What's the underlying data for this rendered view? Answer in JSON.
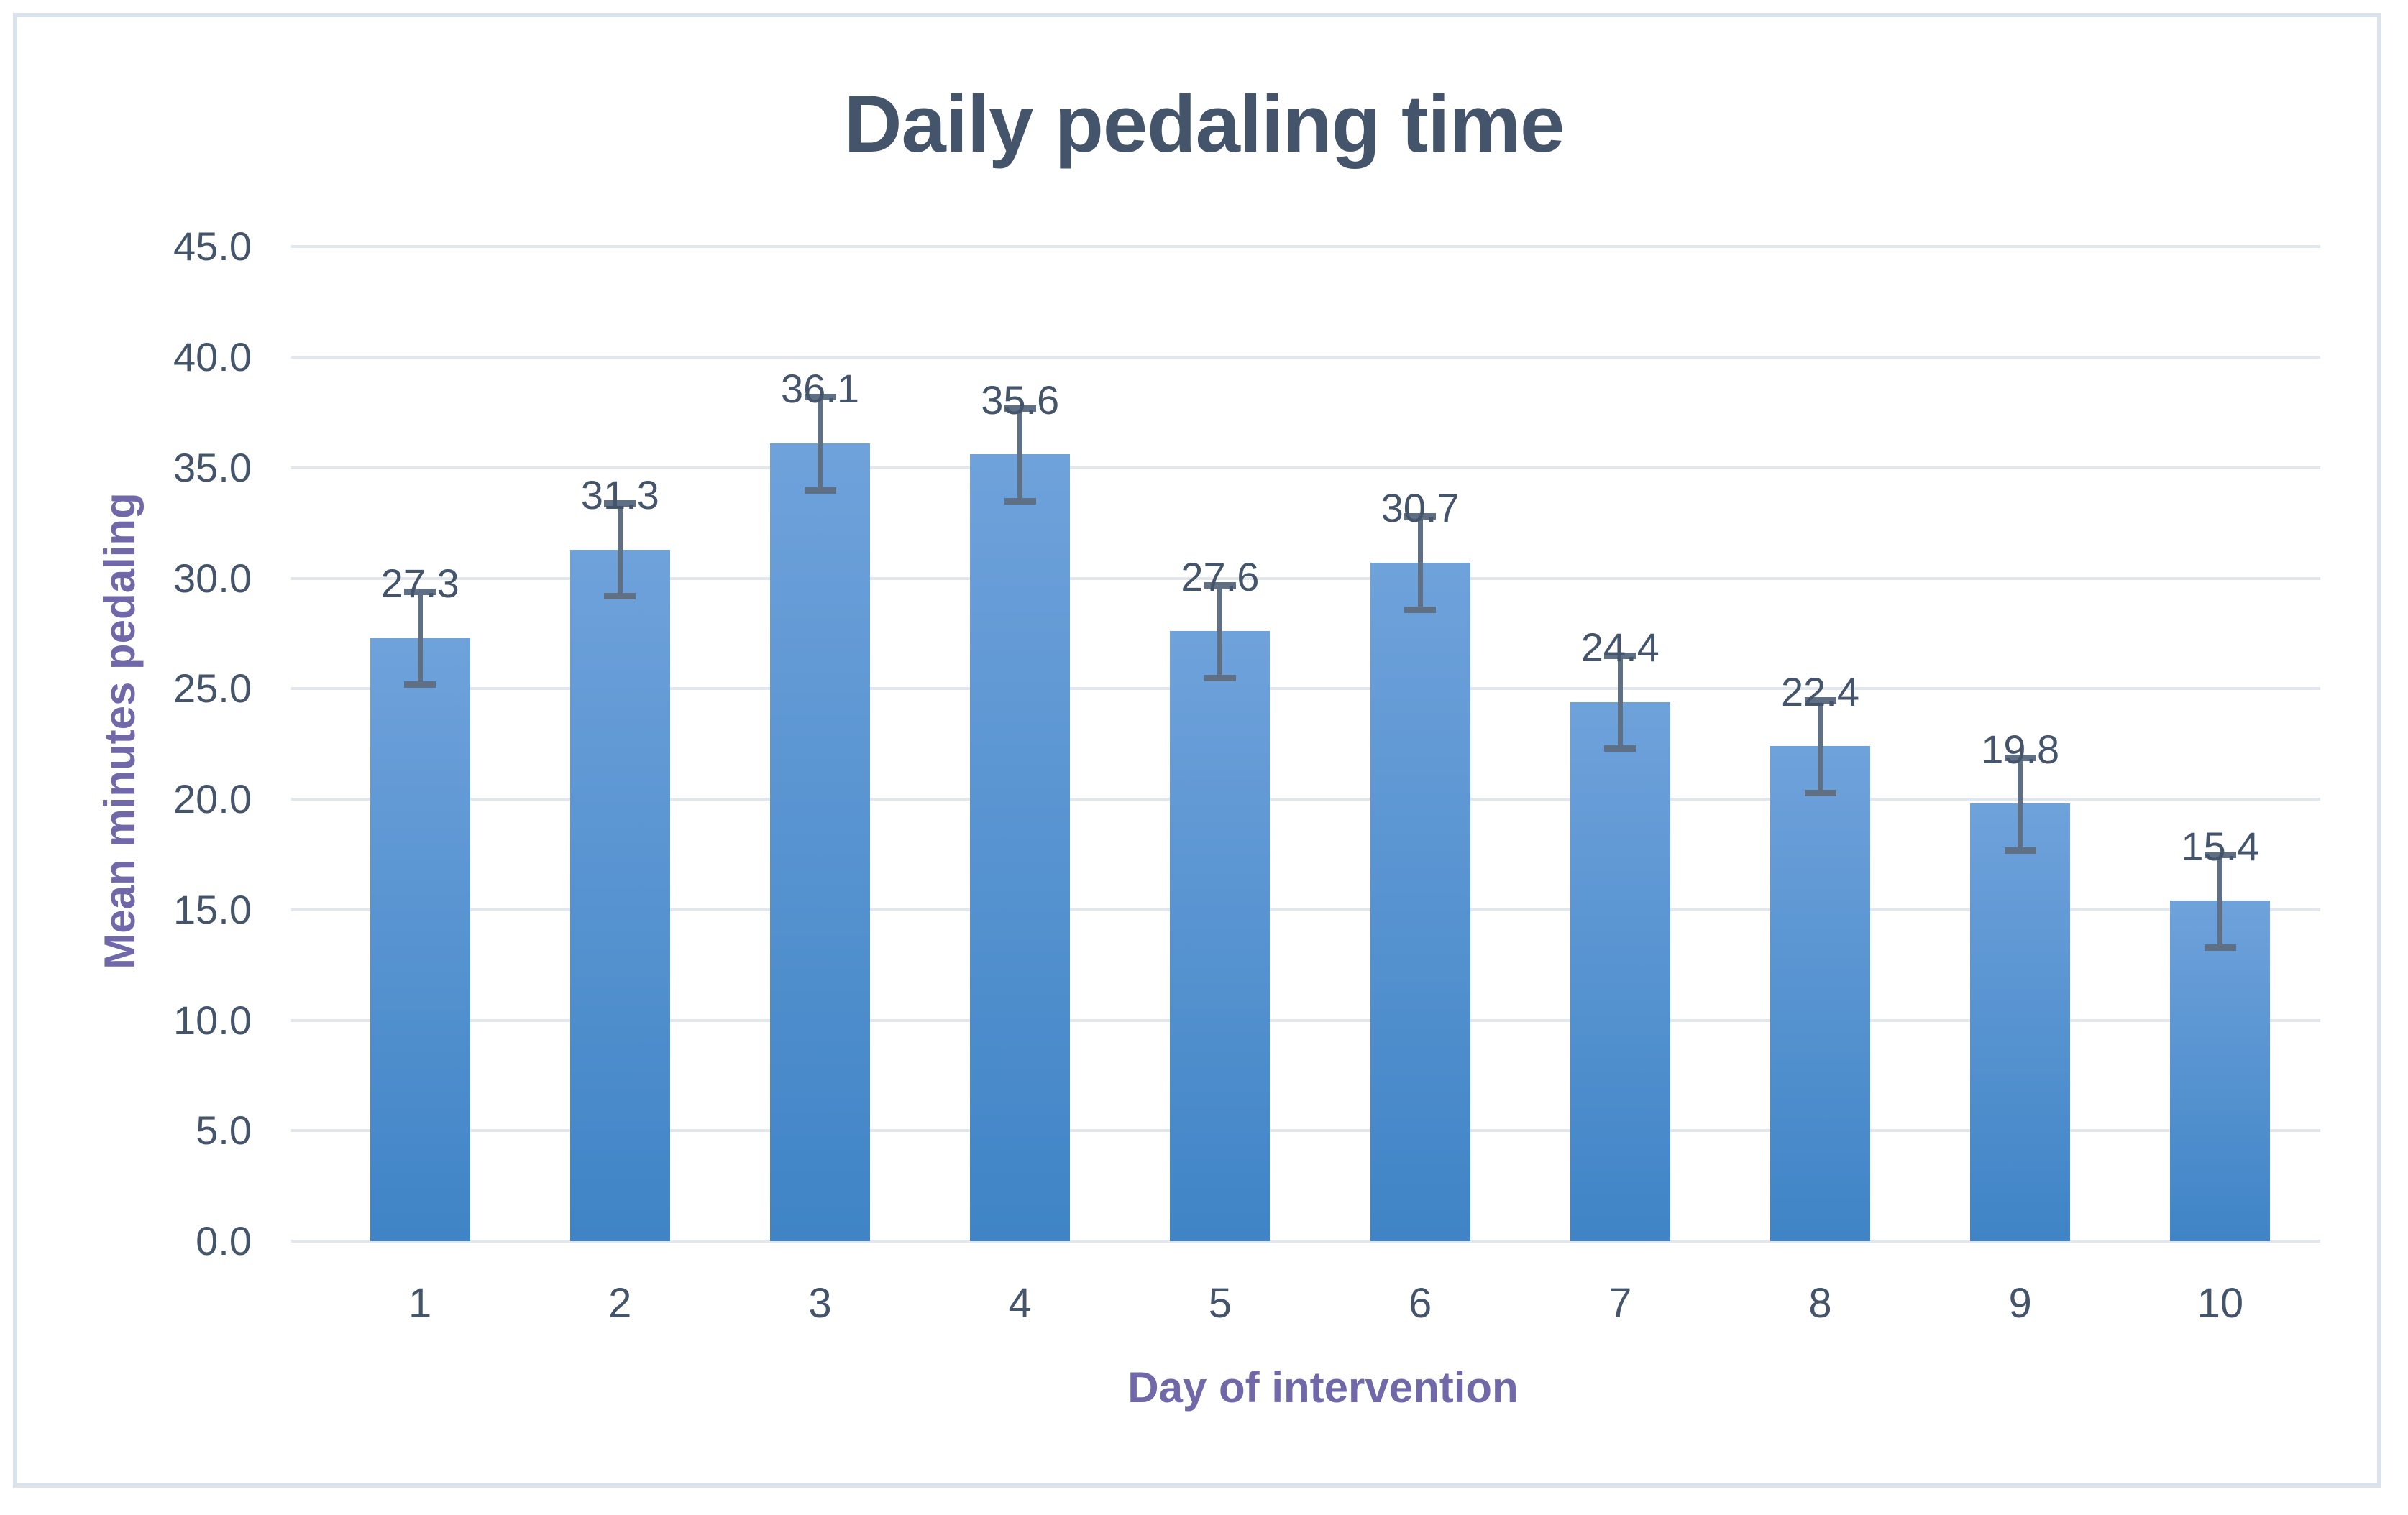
{
  "title": "Daily pedaling time",
  "y_axis": {
    "title": "Mean minutes pedaling",
    "tick_labels": [
      "45.0",
      "40.0",
      "35.0",
      "30.0",
      "25.0",
      "20.0",
      "15.0",
      "10.0",
      "5.0",
      "0.0"
    ]
  },
  "x_axis": {
    "title": "Day of intervention",
    "tick_labels": [
      "1",
      "2",
      "3",
      "4",
      "5",
      "6",
      "7",
      "8",
      "9",
      "10"
    ]
  },
  "chart_data": {
    "type": "bar",
    "title": "Daily pedaling time",
    "xlabel": "Day of intervention",
    "ylabel": "Mean minutes pedaling",
    "categories": [
      "1",
      "2",
      "3",
      "4",
      "5",
      "6",
      "7",
      "8",
      "9",
      "10"
    ],
    "values": [
      27.3,
      31.3,
      36.1,
      35.6,
      27.6,
      30.7,
      24.4,
      22.4,
      19.8,
      15.4
    ],
    "value_labels": [
      "27.3",
      "31.3",
      "36.1",
      "35.6",
      "27.6",
      "30.7",
      "24.4",
      "22.4",
      "19.8",
      "15.4"
    ],
    "error_bars_plus_minus": [
      2.1,
      2.1,
      2.1,
      2.1,
      2.1,
      2.1,
      2.1,
      2.1,
      2.1,
      2.1
    ],
    "ylim": [
      0,
      45
    ],
    "ytick_step": 5,
    "grid": true,
    "legend": false,
    "colors": {
      "bar_gradient_top": "#6fa2db",
      "bar_gradient_bottom": "#3f84c6",
      "error_bar": "#5f7085",
      "text_slate": "#44546a",
      "axis_title_purple": "#7068a8",
      "gridline": "#e2e6ed",
      "chart_border": "#dce2e9",
      "background": "#ffffff"
    }
  }
}
